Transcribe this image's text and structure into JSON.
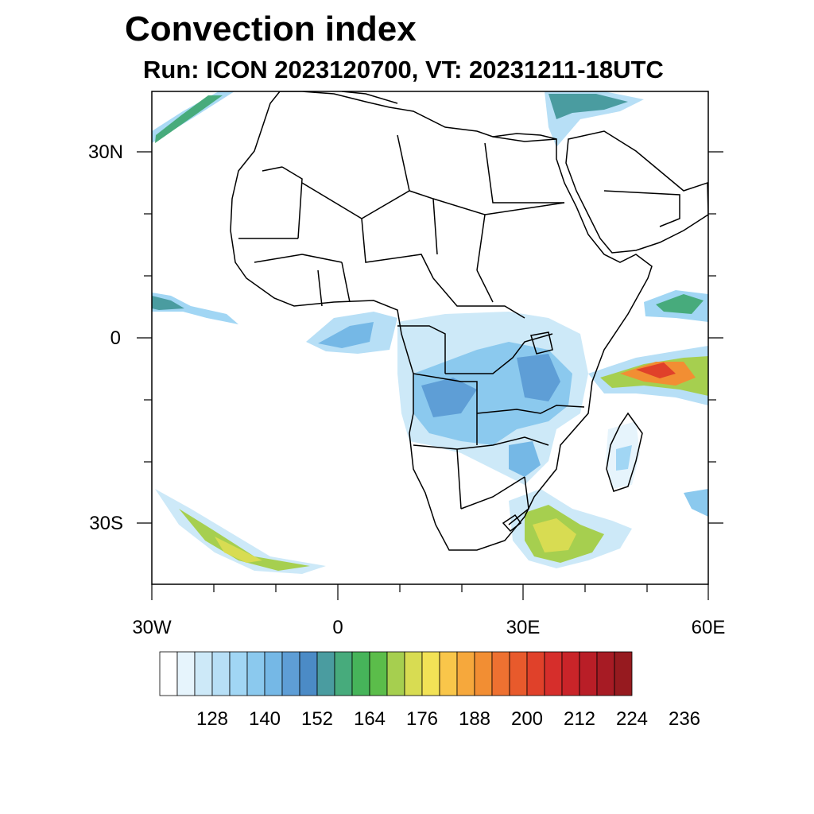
{
  "title": "Convection index",
  "subtitle": "Run: ICON 2023120700,  VT: 20231211-18UTC",
  "axes": {
    "lat_labels": [
      "30N",
      "0",
      "30S"
    ],
    "lon_labels": [
      "30W",
      "0",
      "30E",
      "60E"
    ]
  },
  "colorbar": {
    "labels": [
      "128",
      "140",
      "152",
      "164",
      "176",
      "188",
      "200",
      "212",
      "224",
      "236"
    ],
    "colors": [
      "#ffffff",
      "#e6f4fc",
      "#cde9f8",
      "#b7dff6",
      "#a1d6f4",
      "#8bc9ee",
      "#75b8e6",
      "#5e9ed6",
      "#4b8bc6",
      "#4a9ca0",
      "#47ab7c",
      "#46b45a",
      "#5bbd4a",
      "#a6cf4f",
      "#d8dc52",
      "#f2e256",
      "#f9c64a",
      "#f6a83c",
      "#f28e33",
      "#ee7131",
      "#e85a2c",
      "#e0412a",
      "#d62e2b",
      "#c92429",
      "#b91e27",
      "#a71b24",
      "#961a1f"
    ]
  }
}
